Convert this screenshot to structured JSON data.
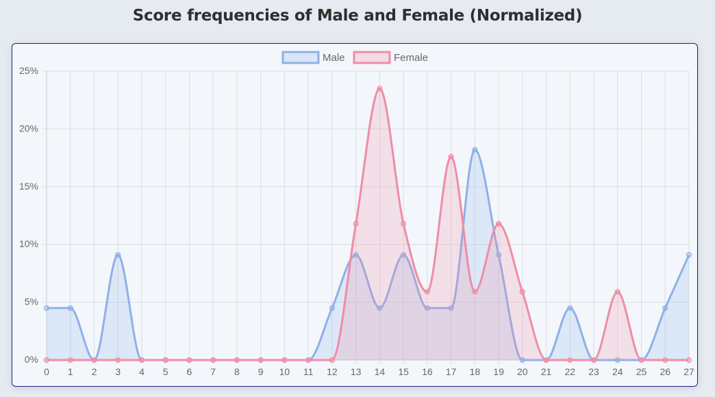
{
  "page": {
    "title": "Score frequencies of Male and Female (Normalized)"
  },
  "chart_data": {
    "type": "line",
    "title": "Score frequencies of Male and Female (Normalized)",
    "x": [
      0,
      1,
      2,
      3,
      4,
      5,
      6,
      7,
      8,
      9,
      10,
      11,
      12,
      13,
      14,
      15,
      16,
      17,
      18,
      19,
      20,
      21,
      22,
      23,
      24,
      25,
      26,
      27
    ],
    "ylim": [
      0,
      25
    ],
    "y_ticks": [
      "0%",
      "5%",
      "10%",
      "15%",
      "20%",
      "25%"
    ],
    "grid": true,
    "legend_position": "top",
    "series": [
      {
        "name": "Male",
        "color": "#8fb0e6",
        "values": [
          4.5,
          4.5,
          0,
          9.1,
          0,
          0,
          0,
          0,
          0,
          0,
          0,
          0,
          4.5,
          9.1,
          4.5,
          9.1,
          4.5,
          4.5,
          18.2,
          9.1,
          0,
          0,
          4.5,
          0,
          0,
          0,
          4.5,
          9.1
        ]
      },
      {
        "name": "Female",
        "color": "#f08ca5",
        "values": [
          0,
          0,
          0,
          0,
          0,
          0,
          0,
          0,
          0,
          0,
          0,
          0,
          0,
          11.8,
          23.5,
          11.8,
          5.9,
          17.6,
          5.9,
          11.8,
          5.9,
          0,
          0,
          0,
          5.9,
          0,
          0,
          0
        ]
      }
    ]
  }
}
